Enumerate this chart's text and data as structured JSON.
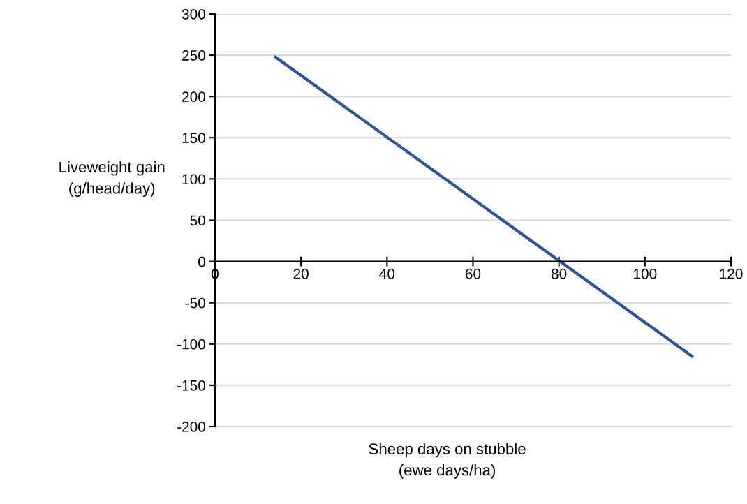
{
  "chart_data": {
    "type": "line",
    "xlabel": "Sheep days on stubble\n(ewe days/ha)",
    "ylabel": "Liveweight gain\n(g/head/day)",
    "x": [
      14,
      111
    ],
    "series": [
      {
        "color": "#2f5597",
        "values": [
          248,
          -115
        ]
      }
    ],
    "xlim": [
      0,
      120
    ],
    "xticks": [
      0,
      20,
      40,
      60,
      80,
      100,
      120
    ],
    "ylim": [
      -200,
      300
    ],
    "yticks": [
      -200,
      -150,
      -100,
      -50,
      0,
      50,
      100,
      150,
      200,
      250,
      300
    ],
    "grid": "y",
    "legend": false,
    "marker": "none",
    "line_style": "solid"
  }
}
